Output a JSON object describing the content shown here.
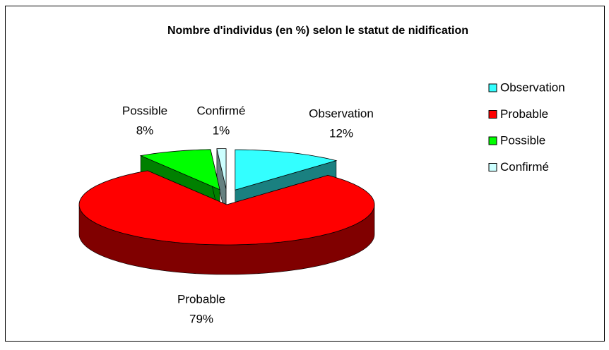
{
  "chart_data": {
    "type": "pie3d",
    "title": "Nombre d'individus (en %) selon le statut de nidification",
    "categories": [
      "Observation",
      "Probable",
      "Possible",
      "Confirmé"
    ],
    "values": [
      12,
      79,
      8,
      1
    ],
    "value_labels": [
      "12%",
      "79%",
      "8%",
      "1%"
    ],
    "colors": [
      "#33ffff",
      "#ff0000",
      "#00ff00",
      "#ccffff"
    ],
    "legend": "right"
  }
}
